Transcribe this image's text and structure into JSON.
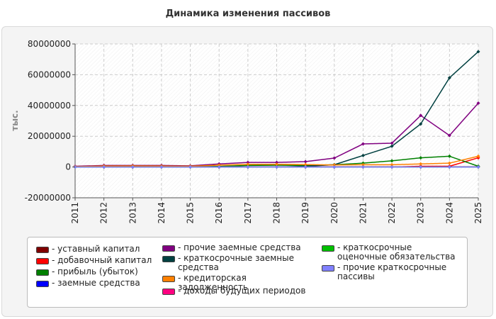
{
  "chart_data": {
    "type": "line",
    "title": "Динамика изменения пассивов",
    "ylabel": "тыс.",
    "xlabel": "",
    "x": [
      "2011",
      "2012",
      "2013",
      "2014",
      "2015",
      "2016",
      "2017",
      "2018",
      "2019",
      "2020",
      "2021",
      "2022",
      "2023",
      "2024",
      "2025"
    ],
    "ylim": [
      -20000000,
      80000000
    ],
    "yticks": [
      "80000000",
      "60000000",
      "40000000",
      "20000000",
      "0",
      "-20000000"
    ],
    "ytick_values": [
      80000000,
      60000000,
      40000000,
      20000000,
      0,
      -20000000
    ],
    "grid": true,
    "legend_position": "bottom",
    "series": [
      {
        "name": "- уставный капитал",
        "color": "#800000",
        "values": [
          100000,
          100000,
          100000,
          100000,
          100000,
          100000,
          100000,
          100000,
          100000,
          100000,
          100000,
          100000,
          100000,
          100000,
          100000
        ]
      },
      {
        "name": "- добавочный капитал",
        "color": "#ff0000",
        "values": [
          0,
          0,
          0,
          0,
          0,
          0,
          0,
          0,
          0,
          0,
          0,
          0,
          500000,
          500000,
          6000000
        ]
      },
      {
        "name": "- прибыль (убыток)",
        "color": "#008000",
        "values": [
          200000,
          300000,
          300000,
          300000,
          200000,
          400000,
          1000000,
          1200000,
          1000000,
          1500000,
          2500000,
          4000000,
          6000000,
          7000000,
          500000
        ]
      },
      {
        "name": "- заемные средства",
        "color": "#0000ff",
        "values": [
          0,
          0,
          0,
          0,
          0,
          0,
          0,
          0,
          0,
          0,
          0,
          0,
          0,
          0,
          0
        ]
      },
      {
        "name": "- прочие заемные средства",
        "color": "#800080",
        "values": [
          500000,
          1000000,
          1000000,
          1000000,
          800000,
          2000000,
          3000000,
          3000000,
          3500000,
          5800000,
          15000000,
          15500000,
          33500000,
          20500000,
          41500000
        ]
      },
      {
        "name": "- краткосрочные заемные средства",
        "color": "#004040",
        "values": [
          0,
          0,
          0,
          0,
          0,
          0,
          0,
          0,
          500000,
          1500000,
          7500000,
          13500000,
          28000000,
          58000000,
          75000000
        ]
      },
      {
        "name": "- кредиторская задолженность",
        "color": "#ff8000",
        "values": [
          300000,
          600000,
          700000,
          600000,
          500000,
          1200000,
          1800000,
          1800000,
          1600000,
          1300000,
          1500000,
          1500000,
          2000000,
          2500000,
          7000000
        ]
      },
      {
        "name": "- доходы будущих периодов",
        "color": "#ff0080",
        "values": [
          0,
          0,
          0,
          0,
          0,
          0,
          0,
          0,
          0,
          0,
          0,
          0,
          0,
          0,
          0
        ]
      },
      {
        "name": "- краткосрочные оценочные обязательства",
        "color": "#00c000",
        "values": [
          0,
          0,
          0,
          0,
          0,
          0,
          0,
          0,
          0,
          0,
          0,
          0,
          0,
          0,
          0
        ]
      },
      {
        "name": "- прочие краткосрочные пассивы",
        "color": "#8080ff",
        "values": [
          0,
          0,
          0,
          0,
          0,
          0,
          0,
          0,
          0,
          0,
          0,
          0,
          0,
          0,
          0
        ]
      }
    ]
  }
}
